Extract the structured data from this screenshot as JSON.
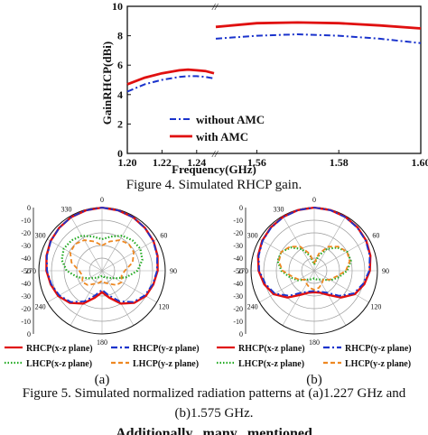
{
  "figure4": {
    "caption": "Figure 4. Simulated RHCP gain.",
    "chart_data": {
      "type": "line",
      "xlabel": "Frequency(GHz)",
      "ylabel": "GainRHCP(dBi)",
      "ylim": [
        0,
        10
      ],
      "yticks": [
        "0",
        "2",
        "4",
        "6",
        "8",
        "10"
      ],
      "xticks_left": [
        "1.20",
        "1.22",
        "1.24"
      ],
      "xticks_right": [
        "1.56",
        "1.58",
        "1.60"
      ],
      "xlim_left": [
        1.2,
        1.25
      ],
      "xlim_right": [
        1.55,
        1.6
      ],
      "legend_position": "bottom-right",
      "series": [
        {
          "name": "without AMC",
          "color": "#1a33cc",
          "style": "dash-dot",
          "left": {
            "x": [
              1.2,
              1.21,
              1.22,
              1.23,
              1.235,
              1.24,
              1.245,
              1.25
            ],
            "y": [
              4.2,
              4.7,
              5.0,
              5.2,
              5.25,
              5.25,
              5.2,
              5.1
            ]
          },
          "right": {
            "x": [
              1.55,
              1.56,
              1.57,
              1.58,
              1.59,
              1.6
            ],
            "y": [
              7.8,
              8.0,
              8.1,
              8.0,
              7.8,
              7.5
            ]
          }
        },
        {
          "name": "with AMC",
          "color": "#e01010",
          "style": "solid",
          "left": {
            "x": [
              1.2,
              1.21,
              1.22,
              1.23,
              1.235,
              1.24,
              1.245,
              1.25
            ],
            "y": [
              4.7,
              5.15,
              5.45,
              5.65,
              5.7,
              5.65,
              5.6,
              5.45
            ]
          },
          "right": {
            "x": [
              1.55,
              1.56,
              1.57,
              1.58,
              1.59,
              1.6
            ],
            "y": [
              8.6,
              8.85,
              8.9,
              8.85,
              8.7,
              8.5
            ]
          }
        }
      ]
    }
  },
  "figure5": {
    "caption_line1": "Figure 5. Simulated normalized radiation patterns at (a)1.227 GHz and",
    "caption_line2": "(b)1.575 GHz.",
    "chart_data": [
      {
        "type": "polar",
        "panel_label": "(a)",
        "rlim": [
          -50,
          0
        ],
        "radial_ticks": [
          "0",
          "-10",
          "-20",
          "-30",
          "-40",
          "-50",
          "-40",
          "-30",
          "-20",
          "-10",
          "0"
        ],
        "angle_ticks": [
          "0",
          "60",
          "90",
          "120",
          "180",
          "240",
          "270",
          "300",
          "330"
        ],
        "series": [
          {
            "name": "RHCP(x-z plane)",
            "color": "#e01010",
            "style": "solid",
            "theta": [
              0,
              15,
              30,
              45,
              60,
              75,
              90,
              105,
              120,
              135,
              150,
              165,
              180,
              195,
              210,
              225,
              240,
              255,
              270,
              285,
              300,
              315,
              330,
              345
            ],
            "r": [
              0,
              -0.5,
              -1,
              -2,
              -3,
              -4.5,
              -6,
              -8,
              -10,
              -14,
              -20,
              -28,
              -33,
              -28,
              -20,
              -14,
              -10,
              -8,
              -6,
              -4.5,
              -3,
              -2,
              -1,
              -0.5
            ]
          },
          {
            "name": "RHCP(y-z plane)",
            "color": "#1a33cc",
            "style": "dash-dot",
            "theta": [
              0,
              15,
              30,
              45,
              60,
              75,
              90,
              105,
              120,
              135,
              150,
              165,
              180,
              195,
              210,
              225,
              240,
              255,
              270,
              285,
              300,
              315,
              330,
              345
            ],
            "r": [
              0,
              -0.5,
              -1,
              -2,
              -3.2,
              -4.8,
              -6.5,
              -8.5,
              -11,
              -15,
              -22,
              -30,
              -35,
              -30,
              -22,
              -15,
              -11,
              -8.5,
              -6.5,
              -4.8,
              -3.2,
              -2,
              -1,
              -0.5
            ]
          },
          {
            "name": "LHCP(x-z plane)",
            "color": "#22aa22",
            "style": "dotted",
            "theta": [
              0,
              15,
              30,
              45,
              60,
              75,
              90,
              105,
              120,
              135,
              150,
              165,
              180,
              195,
              210,
              225,
              240,
              255,
              270,
              285,
              300,
              315,
              330,
              345
            ],
            "r": [
              -25,
              -22,
              -18,
              -16,
              -15,
              -17,
              -22,
              -30,
              -38,
              -42,
              -44,
              -45,
              -46,
              -45,
              -44,
              -42,
              -38,
              -30,
              -22,
              -17,
              -15,
              -16,
              -18,
              -22
            ]
          },
          {
            "name": "LHCP(y-z plane)",
            "color": "#ee8822",
            "style": "dashed",
            "theta": [
              0,
              15,
              30,
              45,
              60,
              75,
              90,
              105,
              120,
              135,
              150,
              165,
              180,
              195,
              210,
              225,
              240,
              255,
              270,
              285,
              300,
              315,
              330,
              345
            ],
            "r": [
              -30,
              -26,
              -22,
              -20,
              -21,
              -25,
              -32,
              -34,
              -32,
              -34,
              -38,
              -40,
              -42,
              -40,
              -38,
              -34,
              -32,
              -34,
              -32,
              -25,
              -21,
              -20,
              -22,
              -26
            ]
          }
        ]
      },
      {
        "type": "polar",
        "panel_label": "(b)",
        "rlim": [
          -50,
          0
        ],
        "radial_ticks": [
          "0",
          "-10",
          "-20",
          "-30",
          "-40",
          "-50",
          "-40",
          "-30",
          "-20",
          "-10",
          "0"
        ],
        "angle_ticks": [
          "0",
          "60",
          "90",
          "120",
          "180",
          "240",
          "270",
          "300",
          "330"
        ],
        "series": [
          {
            "name": "RHCP(x-z plane)",
            "color": "#e01010",
            "style": "solid",
            "theta": [
              0,
              15,
              30,
              45,
              60,
              75,
              90,
              105,
              120,
              135,
              150,
              165,
              180,
              195,
              210,
              225,
              240,
              255,
              270,
              285,
              300,
              315,
              330,
              345
            ],
            "r": [
              0,
              -0.3,
              -0.8,
              -1.5,
              -2.5,
              -4,
              -6,
              -9,
              -13,
              -20,
              -28,
              -32,
              -33,
              -32,
              -28,
              -20,
              -13,
              -9,
              -6,
              -4,
              -2.5,
              -1.5,
              -0.8,
              -0.3
            ]
          },
          {
            "name": "RHCP(y-z plane)",
            "color": "#1a33cc",
            "style": "dash-dot",
            "theta": [
              0,
              15,
              30,
              45,
              60,
              75,
              90,
              105,
              120,
              135,
              150,
              165,
              180,
              195,
              210,
              225,
              240,
              255,
              270,
              285,
              300,
              315,
              330,
              345
            ],
            "r": [
              0,
              -0.4,
              -1,
              -1.8,
              -2.8,
              -4.5,
              -6.5,
              -10,
              -14,
              -22,
              -30,
              -33,
              -34,
              -33,
              -30,
              -22,
              -14,
              -10,
              -6.5,
              -4.5,
              -2.8,
              -1.8,
              -1,
              -0.4
            ]
          },
          {
            "name": "LHCP(x-z plane)",
            "color": "#22aa22",
            "style": "dotted",
            "theta": [
              0,
              15,
              30,
              45,
              60,
              75,
              90,
              105,
              120,
              135,
              150,
              165,
              180,
              195,
              210,
              225,
              240,
              255,
              270,
              285,
              300,
              315,
              330,
              345
            ],
            "r": [
              -45,
              -38,
              -30,
              -24,
              -20,
              -20,
              -24,
              -30,
              -35,
              -40,
              -42,
              -43,
              -44,
              -43,
              -42,
              -40,
              -35,
              -30,
              -24,
              -20,
              -20,
              -24,
              -30,
              -38
            ]
          },
          {
            "name": "LHCP(y-z plane)",
            "color": "#ee8822",
            "style": "dashed",
            "theta": [
              0,
              15,
              30,
              45,
              60,
              75,
              90,
              105,
              120,
              135,
              150,
              165,
              180,
              195,
              210,
              225,
              240,
              255,
              270,
              285,
              300,
              315,
              330,
              345
            ],
            "r": [
              -44,
              -36,
              -28,
              -23,
              -20,
              -21,
              -25,
              -32,
              -36,
              -40,
              -38,
              -36,
              -35,
              -36,
              -38,
              -40,
              -36,
              -32,
              -25,
              -21,
              -20,
              -23,
              -28,
              -36
            ]
          }
        ]
      }
    ]
  },
  "body_text_fragment": "Additionally...many...mentioned"
}
